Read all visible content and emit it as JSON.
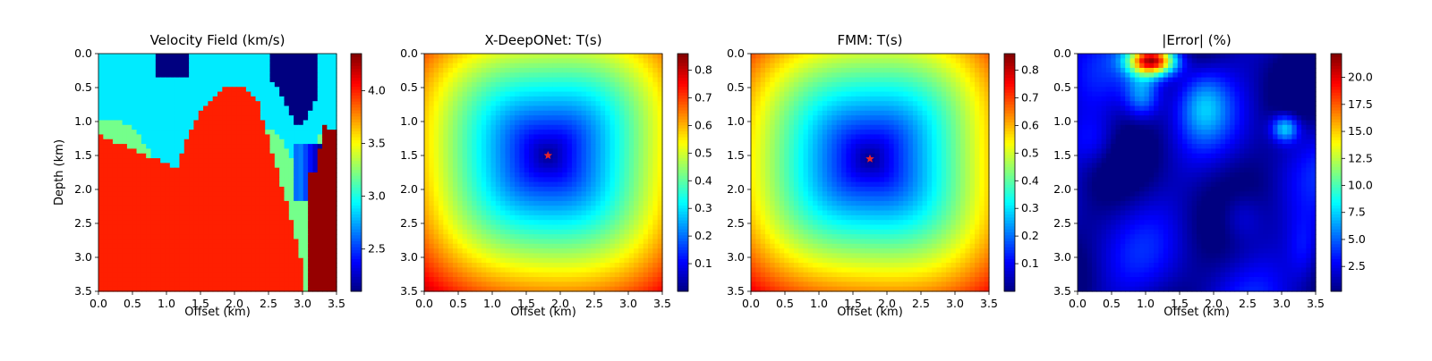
{
  "chart_data": [
    {
      "type": "heatmap",
      "title": "Velocity Field (km/s)",
      "xlabel": "Offset (km)",
      "ylabel": "Depth (km)",
      "xlim": [
        0.0,
        3.5
      ],
      "ylim": [
        3.5,
        0.0
      ],
      "x_ticks": [
        "0.0",
        "0.5",
        "1.0",
        "1.5",
        "2.0",
        "2.5",
        "3.0",
        "3.5"
      ],
      "y_ticks": [
        "0.0",
        "0.5",
        "1.0",
        "1.5",
        "2.0",
        "2.5",
        "3.0",
        "3.5"
      ],
      "colormap": "jet",
      "colorbar": {
        "min": 2.1,
        "max": 4.35,
        "ticks": [
          "2.5",
          "3.0",
          "3.5",
          "4.0"
        ]
      },
      "layers": [
        {
          "description": "top layer",
          "velocity": 2.1
        },
        {
          "description": "cyan layer",
          "velocity": 2.9
        },
        {
          "description": "green layer",
          "velocity": 3.2
        },
        {
          "description": "red basement",
          "velocity": 4.0
        },
        {
          "description": "dark red fault block",
          "velocity": 4.3
        }
      ]
    },
    {
      "type": "heatmap",
      "title": "X-DeepONet: T(s)",
      "xlabel": "Offset (km)",
      "xlim": [
        0.0,
        3.5
      ],
      "ylim": [
        3.5,
        0.0
      ],
      "x_ticks": [
        "0.0",
        "0.5",
        "1.0",
        "1.5",
        "2.0",
        "2.5",
        "3.0",
        "3.5"
      ],
      "y_ticks": [
        "0.0",
        "0.5",
        "1.0",
        "1.5",
        "2.0",
        "2.5",
        "3.0",
        "3.5"
      ],
      "colormap": "jet",
      "source": {
        "x": 1.82,
        "y": 1.5,
        "marker": "star",
        "color": "#e8242c"
      },
      "colorbar": {
        "min": 0.0,
        "max": 0.86,
        "ticks": [
          "0.1",
          "0.2",
          "0.3",
          "0.4",
          "0.5",
          "0.6",
          "0.7",
          "0.8"
        ]
      }
    },
    {
      "type": "heatmap",
      "title": "FMM: T(s)",
      "xlabel": "Offset (km)",
      "xlim": [
        0.0,
        3.5
      ],
      "ylim": [
        3.5,
        0.0
      ],
      "x_ticks": [
        "0.0",
        "0.5",
        "1.0",
        "1.5",
        "2.0",
        "2.5",
        "3.0",
        "3.5"
      ],
      "y_ticks": [
        "0.0",
        "0.5",
        "1.0",
        "1.5",
        "2.0",
        "2.5",
        "3.0",
        "3.5"
      ],
      "colormap": "jet",
      "source": {
        "x": 1.75,
        "y": 1.55,
        "marker": "star",
        "color": "#e8242c"
      },
      "colorbar": {
        "min": 0.0,
        "max": 0.86,
        "ticks": [
          "0.1",
          "0.2",
          "0.3",
          "0.4",
          "0.5",
          "0.6",
          "0.7",
          "0.8"
        ]
      }
    },
    {
      "type": "heatmap",
      "title": "|Error| (%)",
      "xlabel": "Offset (km)",
      "xlim": [
        0.0,
        3.5
      ],
      "ylim": [
        3.5,
        0.0
      ],
      "x_ticks": [
        "0.0",
        "0.5",
        "1.0",
        "1.5",
        "2.0",
        "2.5",
        "3.0",
        "3.5"
      ],
      "y_ticks": [
        "0.0",
        "0.5",
        "1.0",
        "1.5",
        "2.0",
        "2.5",
        "3.0",
        "3.5"
      ],
      "colormap": "jet",
      "colorbar": {
        "min": 0.2,
        "max": 22.2,
        "ticks": [
          "2.5",
          "5.0",
          "7.5",
          "10.0",
          "12.5",
          "15.0",
          "17.5",
          "20.0"
        ]
      },
      "peak": {
        "x": 1.1,
        "y": 0.1,
        "value": 21.5
      }
    }
  ]
}
